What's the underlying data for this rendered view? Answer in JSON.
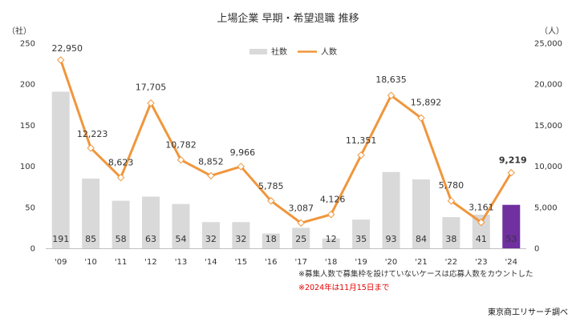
{
  "chart_data": {
    "type": "bar+line",
    "title": "上場企業 早期・希望退職 推移",
    "left_unit": "（社）",
    "right_unit": "（人）",
    "categories": [
      "'09",
      "'10",
      "'11",
      "'12",
      "'13",
      "'14",
      "'15",
      "'16",
      "'17",
      "'18",
      "'19",
      "'20",
      "'21",
      "'22",
      "'23",
      "'24"
    ],
    "left_ticks": [
      "0",
      "50",
      "100",
      "150",
      "200",
      "250"
    ],
    "right_ticks": [
      "0",
      "5,000",
      "10,000",
      "15,000",
      "20,000",
      "25,000"
    ],
    "left_ylim": [
      0,
      250
    ],
    "right_ylim": [
      0,
      25000
    ],
    "series": [
      {
        "name": "社数",
        "type": "bar",
        "axis": "left",
        "color": "#d9d9d9",
        "highlight_color": "#7030a0",
        "values": [
          191,
          85,
          58,
          63,
          54,
          32,
          32,
          18,
          25,
          12,
          35,
          93,
          84,
          38,
          41,
          53
        ],
        "labels": [
          "191",
          "85",
          "58",
          "63",
          "54",
          "32",
          "32",
          "18",
          "25",
          "12",
          "35",
          "93",
          "84",
          "38",
          "41",
          "53"
        ]
      },
      {
        "name": "人数",
        "type": "line",
        "axis": "right",
        "color": "#f0963c",
        "values": [
          22950,
          12223,
          8623,
          17705,
          10782,
          8852,
          9966,
          5785,
          3087,
          4126,
          11351,
          18635,
          15892,
          5780,
          3161,
          9219
        ],
        "labels": [
          "22,950",
          "12,223",
          "8,623",
          "17,705",
          "10,782",
          "8,852",
          "9,966",
          "5,785",
          "3,087",
          "4,126",
          "11,351",
          "18,635",
          "15,892",
          "5,780",
          "3,161",
          "9,219"
        ]
      }
    ],
    "legend_position": "top-center",
    "grid": false,
    "notes": [
      "※募集人数で募集枠を設けていないケースは応募人数をカウントした",
      "※2024年は11月15日まで"
    ],
    "source": "東京商工リサーチ調べ"
  }
}
